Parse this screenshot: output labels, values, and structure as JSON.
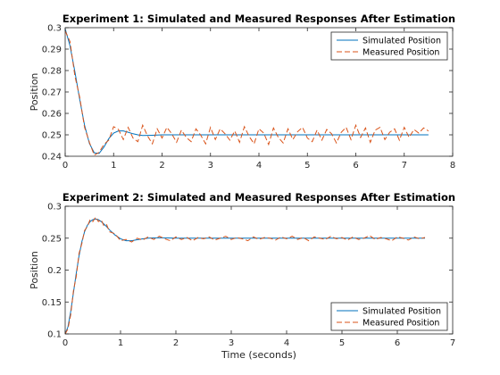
{
  "chart_data": [
    {
      "type": "line",
      "title": "Experiment 1: Simulated and Measured Responses After Estimation",
      "xlabel": "",
      "ylabel": "Position",
      "xlim": [
        0,
        8
      ],
      "ylim": [
        0.24,
        0.3
      ],
      "xticks": [
        0,
        1,
        2,
        3,
        4,
        5,
        6,
        7,
        8
      ],
      "yticks": [
        0.24,
        0.25,
        0.26,
        0.27,
        0.28,
        0.29,
        0.3
      ],
      "ytick_labels": [
        "0.24",
        "0.25",
        "0.26",
        "0.27",
        "0.28",
        "0.29",
        "0.3"
      ],
      "grid": false,
      "legend_position": "top-right",
      "series": [
        {
          "name": "Simulated Position",
          "style": "solid",
          "color": "#0072BD",
          "x": [
            0,
            0.1,
            0.2,
            0.3,
            0.4,
            0.5,
            0.6,
            0.7,
            0.8,
            0.9,
            1.0,
            1.1,
            1.2,
            1.3,
            1.4,
            1.5,
            1.6,
            1.8,
            2.0,
            2.5,
            3.0,
            4.0,
            5.0,
            6.0,
            7.0,
            7.5
          ],
          "y": [
            0.2995,
            0.2915,
            0.2795,
            0.2665,
            0.2545,
            0.246,
            0.2416,
            0.2413,
            0.2443,
            0.2482,
            0.2508,
            0.2518,
            0.2518,
            0.2512,
            0.2505,
            0.25,
            0.2497,
            0.2498,
            0.25,
            0.25,
            0.25,
            0.25,
            0.25,
            0.25,
            0.25,
            0.25
          ]
        },
        {
          "name": "Measured Position",
          "style": "dashed",
          "color": "#D95319",
          "x": [
            0,
            0.1,
            0.2,
            0.3,
            0.4,
            0.5,
            0.6,
            0.7,
            0.8,
            0.9,
            1.0,
            1.1,
            1.2,
            1.3,
            1.4,
            1.5,
            1.6,
            1.7,
            1.8,
            1.9,
            2.0,
            2.1,
            2.2,
            2.3,
            2.4,
            2.5,
            2.6,
            2.7,
            2.8,
            2.9,
            3.0,
            3.1,
            3.2,
            3.3,
            3.4,
            3.5,
            3.6,
            3.7,
            3.8,
            3.9,
            4.0,
            4.1,
            4.2,
            4.3,
            4.4,
            4.5,
            4.6,
            4.7,
            4.8,
            4.9,
            5.0,
            5.1,
            5.2,
            5.3,
            5.4,
            5.5,
            5.6,
            5.7,
            5.8,
            5.9,
            6.0,
            6.1,
            6.2,
            6.3,
            6.4,
            6.5,
            6.6,
            6.7,
            6.8,
            6.9,
            7.0,
            7.1,
            7.2,
            7.3,
            7.4,
            7.5
          ],
          "y": [
            0.2985,
            0.2935,
            0.2775,
            0.2675,
            0.2535,
            0.2465,
            0.2405,
            0.2418,
            0.2455,
            0.2475,
            0.2538,
            0.2525,
            0.2478,
            0.2535,
            0.2485,
            0.2468,
            0.2545,
            0.2495,
            0.2458,
            0.2528,
            0.2485,
            0.2535,
            0.2505,
            0.2465,
            0.2522,
            0.2488,
            0.2468,
            0.2528,
            0.2498,
            0.2458,
            0.2535,
            0.2478,
            0.2528,
            0.2505,
            0.2475,
            0.2518,
            0.2465,
            0.2538,
            0.2492,
            0.2458,
            0.2528,
            0.2508,
            0.2455,
            0.2532,
            0.2488,
            0.2462,
            0.2528,
            0.2478,
            0.2515,
            0.2535,
            0.2485,
            0.2468,
            0.2522,
            0.2475,
            0.2525,
            0.2505,
            0.2462,
            0.2512,
            0.2535,
            0.2478,
            0.2545,
            0.2488,
            0.2532,
            0.2465,
            0.2522,
            0.2535,
            0.2478,
            0.2512,
            0.2528,
            0.2475,
            0.2535,
            0.2488,
            0.2525,
            0.2508,
            0.2532,
            0.2518
          ]
        }
      ]
    },
    {
      "type": "line",
      "title": "Experiment 2: Simulated and Measured Responses After Estimation",
      "xlabel": "Time (seconds)",
      "ylabel": "Position",
      "xlim": [
        0,
        7
      ],
      "ylim": [
        0.1,
        0.3
      ],
      "xticks": [
        0,
        1,
        2,
        3,
        4,
        5,
        6,
        7
      ],
      "yticks": [
        0.1,
        0.15,
        0.2,
        0.25,
        0.3
      ],
      "ytick_labels": [
        "0.1",
        "0.15",
        "0.2",
        "0.25",
        "0.3"
      ],
      "grid": false,
      "legend_position": "bottom-right",
      "series": [
        {
          "name": "Simulated Position",
          "style": "solid",
          "color": "#0072BD",
          "x": [
            0,
            0.05,
            0.1,
            0.15,
            0.2,
            0.25,
            0.3,
            0.35,
            0.4,
            0.45,
            0.5,
            0.55,
            0.6,
            0.65,
            0.7,
            0.75,
            0.8,
            0.9,
            1.0,
            1.1,
            1.2,
            1.3,
            1.4,
            1.5,
            1.6,
            1.8,
            2.0,
            2.5,
            3.0,
            4.0,
            5.0,
            6.0,
            6.5
          ],
          "y": [
            0.1,
            0.111,
            0.135,
            0.165,
            0.195,
            0.222,
            0.244,
            0.26,
            0.27,
            0.276,
            0.279,
            0.28,
            0.279,
            0.276,
            0.272,
            0.268,
            0.263,
            0.255,
            0.249,
            0.246,
            0.246,
            0.2475,
            0.249,
            0.25,
            0.2505,
            0.2505,
            0.25,
            0.25,
            0.25,
            0.25,
            0.25,
            0.25,
            0.25
          ]
        },
        {
          "name": "Measured Position",
          "style": "dashed",
          "color": "#D95319",
          "x": [
            0,
            0.05,
            0.1,
            0.15,
            0.2,
            0.25,
            0.3,
            0.35,
            0.4,
            0.45,
            0.5,
            0.55,
            0.6,
            0.65,
            0.7,
            0.75,
            0.8,
            0.9,
            1.0,
            1.1,
            1.2,
            1.3,
            1.4,
            1.5,
            1.6,
            1.7,
            1.8,
            1.9,
            2.0,
            2.1,
            2.2,
            2.3,
            2.4,
            2.5,
            2.6,
            2.7,
            2.8,
            2.9,
            3.0,
            3.1,
            3.2,
            3.3,
            3.4,
            3.5,
            3.6,
            3.7,
            3.8,
            3.9,
            4.0,
            4.1,
            4.2,
            4.3,
            4.4,
            4.5,
            4.6,
            4.7,
            4.8,
            4.9,
            5.0,
            5.1,
            5.2,
            5.3,
            5.4,
            5.5,
            5.6,
            5.7,
            5.8,
            5.9,
            6.0,
            6.1,
            6.2,
            6.3,
            6.4,
            6.5
          ],
          "y": [
            0.1,
            0.108,
            0.13,
            0.168,
            0.19,
            0.226,
            0.241,
            0.262,
            0.268,
            0.279,
            0.276,
            0.283,
            0.276,
            0.279,
            0.269,
            0.271,
            0.26,
            0.257,
            0.246,
            0.248,
            0.244,
            0.25,
            0.247,
            0.252,
            0.248,
            0.253,
            0.249,
            0.246,
            0.252,
            0.248,
            0.251,
            0.246,
            0.251,
            0.249,
            0.252,
            0.247,
            0.25,
            0.253,
            0.248,
            0.251,
            0.249,
            0.246,
            0.252,
            0.248,
            0.251,
            0.25,
            0.247,
            0.252,
            0.249,
            0.253,
            0.248,
            0.251,
            0.246,
            0.252,
            0.25,
            0.248,
            0.253,
            0.249,
            0.251,
            0.247,
            0.252,
            0.248,
            0.25,
            0.254,
            0.248,
            0.251,
            0.249,
            0.246,
            0.252,
            0.25,
            0.247,
            0.252,
            0.249,
            0.251
          ]
        }
      ]
    }
  ]
}
